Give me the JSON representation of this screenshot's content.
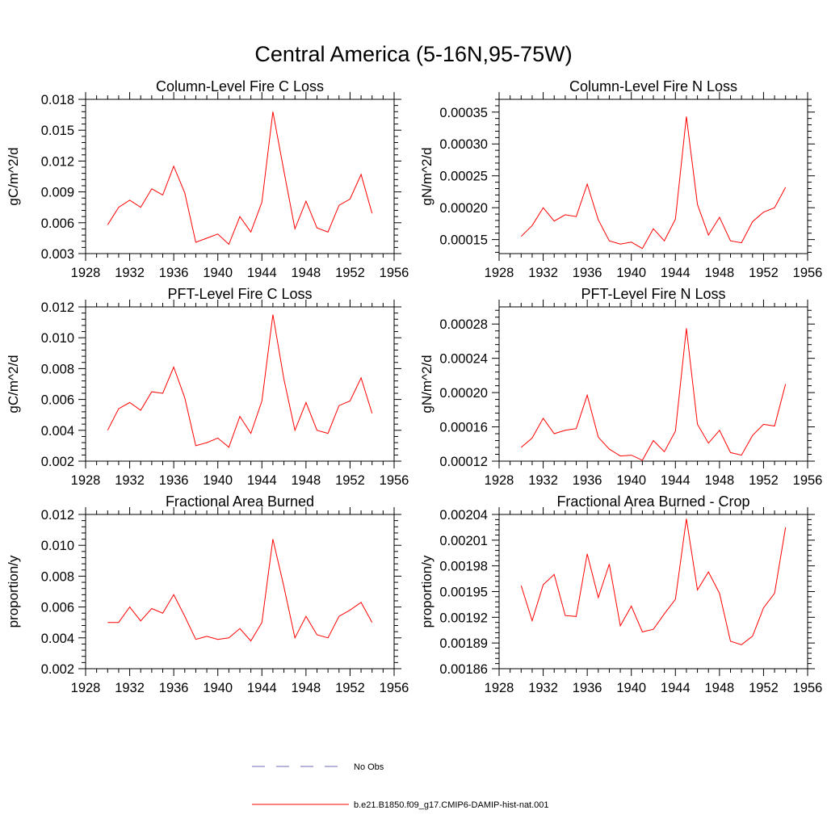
{
  "figure": {
    "title": "Central America (5-16N,95-75W)"
  },
  "legend": {
    "placement": "bottom-center",
    "entries": [
      {
        "label": "No Obs",
        "color": "#6b6bb5",
        "style": "dashed"
      },
      {
        "label": "b.e21.B1850.f09_g17.CMIP6-DAMIP-hist-nat.001",
        "color": "#ff0000",
        "style": "solid"
      }
    ]
  },
  "chart_data": [
    {
      "type": "line",
      "title": "Column-Level Fire C Loss",
      "ylabel": "gC/m^2/d",
      "xlim": [
        1928,
        1956
      ],
      "ylim": [
        0.003,
        0.018
      ],
      "x_ticks": [
        "1928",
        "1932",
        "1936",
        "1940",
        "1944",
        "1948",
        "1952",
        "1956"
      ],
      "y_ticks": [
        {
          "value": 0.003,
          "label": "0.003"
        },
        {
          "value": 0.006,
          "label": "0.006"
        },
        {
          "value": 0.009,
          "label": "0.009"
        },
        {
          "value": 0.012,
          "label": "0.012"
        },
        {
          "value": 0.015,
          "label": "0.015"
        },
        {
          "value": 0.018,
          "label": "0.018"
        }
      ],
      "series": [
        {
          "color": "#ff0000",
          "x": [
            1930,
            1931,
            1932,
            1933,
            1934,
            1935,
            1936,
            1937,
            1938,
            1939,
            1940,
            1941,
            1942,
            1943,
            1944,
            1945,
            1946,
            1947,
            1948,
            1949,
            1950,
            1951,
            1952,
            1953,
            1954
          ],
          "y": [
            0.0058,
            0.0075,
            0.0082,
            0.0075,
            0.0093,
            0.0087,
            0.0115,
            0.0089,
            0.0041,
            0.0045,
            0.0049,
            0.0039,
            0.0066,
            0.0051,
            0.008,
            0.0168,
            0.011,
            0.0054,
            0.0081,
            0.0055,
            0.0051,
            0.0077,
            0.0083,
            0.0107,
            0.0069
          ]
        }
      ]
    },
    {
      "type": "line",
      "title": "Column-Level Fire N Loss",
      "ylabel": "gN/m^2/d",
      "xlim": [
        1928,
        1956
      ],
      "ylim": [
        0.000128,
        0.00037
      ],
      "x_ticks": [
        "1928",
        "1932",
        "1936",
        "1940",
        "1944",
        "1948",
        "1952",
        "1956"
      ],
      "y_ticks": [
        {
          "value": 0.00015,
          "label": "0.00015"
        },
        {
          "value": 0.0002,
          "label": "0.00020"
        },
        {
          "value": 0.00025,
          "label": "0.00025"
        },
        {
          "value": 0.0003,
          "label": "0.00030"
        },
        {
          "value": 0.00035,
          "label": "0.00035"
        }
      ],
      "series": [
        {
          "color": "#ff0000",
          "x": [
            1930,
            1931,
            1932,
            1933,
            1934,
            1935,
            1936,
            1937,
            1938,
            1939,
            1940,
            1941,
            1942,
            1943,
            1944,
            1945,
            1946,
            1947,
            1948,
            1949,
            1950,
            1951,
            1952,
            1953,
            1954
          ],
          "y": [
            0.000155,
            0.000172,
            0.0002,
            0.000179,
            0.000189,
            0.000186,
            0.000237,
            0.000181,
            0.000148,
            0.000143,
            0.000146,
            0.000136,
            0.000167,
            0.000148,
            0.000182,
            0.000343,
            0.000205,
            0.000157,
            0.000185,
            0.000148,
            0.000145,
            0.000178,
            0.000193,
            0.0002,
            0.000232
          ]
        }
      ]
    },
    {
      "type": "line",
      "title": "PFT-Level Fire C Loss",
      "ylabel": "gC/m^2/d",
      "xlim": [
        1928,
        1956
      ],
      "ylim": [
        0.002,
        0.012
      ],
      "x_ticks": [
        "1928",
        "1932",
        "1936",
        "1940",
        "1944",
        "1948",
        "1952",
        "1956"
      ],
      "y_ticks": [
        {
          "value": 0.002,
          "label": "0.002"
        },
        {
          "value": 0.004,
          "label": "0.004"
        },
        {
          "value": 0.006,
          "label": "0.006"
        },
        {
          "value": 0.008,
          "label": "0.008"
        },
        {
          "value": 0.01,
          "label": "0.010"
        },
        {
          "value": 0.012,
          "label": "0.012"
        }
      ],
      "series": [
        {
          "color": "#ff0000",
          "x": [
            1930,
            1931,
            1932,
            1933,
            1934,
            1935,
            1936,
            1937,
            1938,
            1939,
            1940,
            1941,
            1942,
            1943,
            1944,
            1945,
            1946,
            1947,
            1948,
            1949,
            1950,
            1951,
            1952,
            1953,
            1954
          ],
          "y": [
            0.004,
            0.0054,
            0.0058,
            0.0053,
            0.0065,
            0.0064,
            0.0081,
            0.0061,
            0.003,
            0.0032,
            0.0035,
            0.0029,
            0.0049,
            0.0038,
            0.0059,
            0.0115,
            0.0073,
            0.004,
            0.0058,
            0.004,
            0.0038,
            0.0056,
            0.0059,
            0.0074,
            0.0051
          ]
        }
      ]
    },
    {
      "type": "line",
      "title": "PFT-Level Fire N Loss",
      "ylabel": "gN/m^2/d",
      "xlim": [
        1928,
        1956
      ],
      "ylim": [
        0.00012,
        0.0003
      ],
      "x_ticks": [
        "1928",
        "1932",
        "1936",
        "1940",
        "1944",
        "1948",
        "1952",
        "1956"
      ],
      "y_ticks": [
        {
          "value": 0.00012,
          "label": "0.00012"
        },
        {
          "value": 0.00016,
          "label": "0.00016"
        },
        {
          "value": 0.0002,
          "label": "0.00020"
        },
        {
          "value": 0.00024,
          "label": "0.00024"
        },
        {
          "value": 0.00028,
          "label": "0.00028"
        }
      ],
      "series": [
        {
          "color": "#ff0000",
          "x": [
            1930,
            1931,
            1932,
            1933,
            1934,
            1935,
            1936,
            1937,
            1938,
            1939,
            1940,
            1941,
            1942,
            1943,
            1944,
            1945,
            1946,
            1947,
            1948,
            1949,
            1950,
            1951,
            1952,
            1953,
            1954
          ],
          "y": [
            0.000136,
            0.000147,
            0.00017,
            0.000152,
            0.000156,
            0.000158,
            0.000197,
            0.000148,
            0.000134,
            0.000126,
            0.000127,
            0.000121,
            0.000144,
            0.000131,
            0.000155,
            0.000275,
            0.000163,
            0.000141,
            0.000156,
            0.00013,
            0.000127,
            0.00015,
            0.000163,
            0.000161,
            0.00021
          ]
        }
      ]
    },
    {
      "type": "line",
      "title": "Fractional Area Burned",
      "ylabel": "proportion/y",
      "xlim": [
        1928,
        1956
      ],
      "ylim": [
        0.002,
        0.012
      ],
      "x_ticks": [
        "1928",
        "1932",
        "1936",
        "1940",
        "1944",
        "1948",
        "1952",
        "1956"
      ],
      "y_ticks": [
        {
          "value": 0.002,
          "label": "0.002"
        },
        {
          "value": 0.004,
          "label": "0.004"
        },
        {
          "value": 0.006,
          "label": "0.006"
        },
        {
          "value": 0.008,
          "label": "0.008"
        },
        {
          "value": 0.01,
          "label": "0.010"
        },
        {
          "value": 0.012,
          "label": "0.012"
        }
      ],
      "series": [
        {
          "color": "#ff0000",
          "x": [
            1930,
            1931,
            1932,
            1933,
            1934,
            1935,
            1936,
            1937,
            1938,
            1939,
            1940,
            1941,
            1942,
            1943,
            1944,
            1945,
            1946,
            1947,
            1948,
            1949,
            1950,
            1951,
            1952,
            1953,
            1954
          ],
          "y": [
            0.005,
            0.005,
            0.006,
            0.0051,
            0.0059,
            0.0056,
            0.0068,
            0.0054,
            0.0039,
            0.0041,
            0.0039,
            0.004,
            0.0046,
            0.0038,
            0.005,
            0.0104,
            0.0073,
            0.004,
            0.0054,
            0.0042,
            0.004,
            0.0054,
            0.0058,
            0.0063,
            0.005
          ]
        }
      ]
    },
    {
      "type": "line",
      "title": "Fractional Area Burned - Crop",
      "ylabel": "proportion/y",
      "xlim": [
        1928,
        1956
      ],
      "ylim": [
        0.00186,
        0.00204
      ],
      "x_ticks": [
        "1928",
        "1932",
        "1936",
        "1940",
        "1944",
        "1948",
        "1952",
        "1956"
      ],
      "y_ticks": [
        {
          "value": 0.00186,
          "label": "0.00186"
        },
        {
          "value": 0.00189,
          "label": "0.00189"
        },
        {
          "value": 0.00192,
          "label": "0.00192"
        },
        {
          "value": 0.00195,
          "label": "0.00195"
        },
        {
          "value": 0.00198,
          "label": "0.00198"
        },
        {
          "value": 0.00201,
          "label": "0.00201"
        },
        {
          "value": 0.00204,
          "label": "0.00204"
        }
      ],
      "series": [
        {
          "color": "#ff0000",
          "x": [
            1930,
            1931,
            1932,
            1933,
            1934,
            1935,
            1936,
            1937,
            1938,
            1939,
            1940,
            1941,
            1942,
            1943,
            1944,
            1945,
            1946,
            1947,
            1948,
            1949,
            1950,
            1951,
            1952,
            1953,
            1954
          ],
          "y": [
            0.001957,
            0.001916,
            0.001958,
            0.00197,
            0.001922,
            0.001921,
            0.001994,
            0.001943,
            0.001982,
            0.00191,
            0.001933,
            0.001903,
            0.001906,
            0.001924,
            0.001941,
            0.002035,
            0.001952,
            0.001973,
            0.001948,
            0.001892,
            0.001888,
            0.001898,
            0.001931,
            0.001948,
            0.002025
          ]
        }
      ]
    }
  ]
}
